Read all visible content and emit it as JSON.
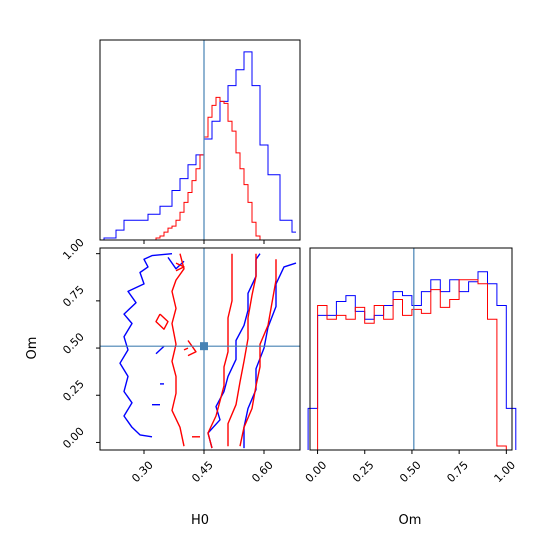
{
  "chart_data": [
    {
      "id": "h0-marginal",
      "type": "histogram",
      "title": "",
      "xlabel": "",
      "ylabel": "",
      "xlim": [
        0.19,
        0.69
      ],
      "x_ticks": [
        0.3,
        0.45,
        0.6
      ],
      "tick_labels_shown": false,
      "truth_line": 0.45,
      "series": [
        {
          "color": "#0000ff",
          "bin_edges": [
            0.2,
            0.21,
            0.22,
            0.23,
            0.24,
            0.25,
            0.26,
            0.27,
            0.28,
            0.29,
            0.3,
            0.31,
            0.32,
            0.33,
            0.34,
            0.35,
            0.36,
            0.37,
            0.38,
            0.39,
            0.4,
            0.41,
            0.42,
            0.43,
            0.44,
            0.45,
            0.46,
            0.47,
            0.48,
            0.49,
            0.5,
            0.51,
            0.52,
            0.53,
            0.54,
            0.55,
            0.56,
            0.57,
            0.58,
            0.59,
            0.6,
            0.61,
            0.62,
            0.63,
            0.64,
            0.65,
            0.66,
            0.67,
            0.68
          ],
          "counts": [
            0.01,
            0.01,
            0.01,
            0.05,
            0.05,
            0.1,
            0.1,
            0.1,
            0.1,
            0.1,
            0.1,
            0.13,
            0.13,
            0.13,
            0.17,
            0.17,
            0.17,
            0.25,
            0.25,
            0.31,
            0.31,
            0.38,
            0.38,
            0.43,
            0.43,
            0.51,
            0.51,
            0.6,
            0.6,
            0.7,
            0.7,
            0.78,
            0.78,
            0.86,
            0.86,
            0.95,
            0.95,
            0.78,
            0.78,
            0.48,
            0.48,
            0.33,
            0.33,
            0.33,
            0.1,
            0.1,
            0.1,
            0.04,
            0.04
          ]
        },
        {
          "color": "#ff0000",
          "bin_edges": [
            0.33,
            0.34,
            0.35,
            0.36,
            0.37,
            0.38,
            0.39,
            0.4,
            0.41,
            0.42,
            0.43,
            0.44,
            0.45,
            0.46,
            0.47,
            0.48,
            0.49,
            0.5,
            0.51,
            0.52,
            0.53,
            0.54,
            0.55,
            0.56,
            0.57,
            0.58,
            0.59,
            0.6
          ],
          "counts": [
            0.01,
            0.02,
            0.04,
            0.06,
            0.07,
            0.1,
            0.14,
            0.19,
            0.24,
            0.3,
            0.36,
            0.43,
            0.52,
            0.62,
            0.68,
            0.72,
            0.7,
            0.69,
            0.6,
            0.55,
            0.44,
            0.36,
            0.28,
            0.19,
            0.09,
            0.02,
            0.0,
            0.0
          ]
        }
      ]
    },
    {
      "id": "h0-om-contour",
      "type": "contour",
      "title": "",
      "xlabel": "H0",
      "ylabel": "Om",
      "xlim": [
        0.19,
        0.69
      ],
      "ylim": [
        -0.04,
        1.03
      ],
      "x_ticks": [
        "0.30",
        "0.45",
        "0.60"
      ],
      "y_ticks": [
        "0.00",
        "0.25",
        "0.50",
        "0.75",
        "1.00"
      ],
      "truth_point": [
        0.45,
        0.51
      ],
      "series": [
        {
          "color": "#0000ff",
          "contours": [
            [
              [
                0.37,
                1.0
              ],
              [
                0.32,
                0.99
              ],
              [
                0.3,
                0.97
              ],
              [
                0.31,
                0.93
              ],
              [
                0.29,
                0.9
              ],
              [
                0.3,
                0.84
              ],
              [
                0.26,
                0.8
              ],
              [
                0.28,
                0.74
              ],
              [
                0.25,
                0.68
              ],
              [
                0.27,
                0.63
              ],
              [
                0.25,
                0.56
              ],
              [
                0.26,
                0.49
              ],
              [
                0.24,
                0.42
              ],
              [
                0.26,
                0.35
              ],
              [
                0.25,
                0.27
              ],
              [
                0.27,
                0.21
              ],
              [
                0.25,
                0.14
              ],
              [
                0.27,
                0.08
              ],
              [
                0.29,
                0.04
              ],
              [
                0.32,
                0.03
              ]
            ],
            [
              [
                0.47,
                -0.03
              ],
              [
                0.46,
                0.05
              ],
              [
                0.49,
                0.12
              ],
              [
                0.48,
                0.19
              ],
              [
                0.5,
                0.27
              ],
              [
                0.51,
                0.35
              ],
              [
                0.53,
                0.44
              ],
              [
                0.53,
                0.54
              ],
              [
                0.55,
                0.62
              ],
              [
                0.56,
                0.7
              ],
              [
                0.56,
                0.79
              ],
              [
                0.58,
                0.88
              ],
              [
                0.58,
                0.97
              ],
              [
                0.59,
                1.0
              ]
            ],
            [
              [
                0.55,
                -0.03
              ],
              [
                0.55,
                0.08
              ],
              [
                0.56,
                0.18
              ],
              [
                0.58,
                0.28
              ],
              [
                0.58,
                0.39
              ],
              [
                0.6,
                0.5
              ],
              [
                0.61,
                0.61
              ],
              [
                0.63,
                0.72
              ],
              [
                0.63,
                0.84
              ],
              [
                0.65,
                0.93
              ],
              [
                0.68,
                0.95
              ]
            ],
            [
              [
                0.36,
                0.98
              ],
              [
                0.38,
                0.92
              ],
              [
                0.4,
                0.96
              ]
            ],
            [
              [
                0.33,
                0.47
              ],
              [
                0.35,
                0.51
              ]
            ],
            [
              [
                0.34,
                0.31
              ],
              [
                0.35,
                0.31
              ]
            ],
            [
              [
                0.32,
                0.2
              ],
              [
                0.34,
                0.2
              ]
            ]
          ]
        },
        {
          "color": "#ff0000",
          "contours": [
            [
              [
                0.39,
                1.0
              ],
              [
                0.4,
                0.92
              ],
              [
                0.38,
                0.86
              ],
              [
                0.37,
                0.8
              ],
              [
                0.38,
                0.71
              ],
              [
                0.37,
                0.63
              ],
              [
                0.38,
                0.52
              ],
              [
                0.37,
                0.43
              ],
              [
                0.38,
                0.35
              ],
              [
                0.38,
                0.26
              ],
              [
                0.37,
                0.17
              ],
              [
                0.39,
                0.08
              ],
              [
                0.4,
                -0.02
              ]
            ],
            [
              [
                0.47,
                -0.03
              ],
              [
                0.46,
                0.05
              ],
              [
                0.48,
                0.14
              ],
              [
                0.49,
                0.22
              ],
              [
                0.5,
                0.3
              ],
              [
                0.5,
                0.4
              ],
              [
                0.51,
                0.48
              ],
              [
                0.51,
                0.57
              ],
              [
                0.51,
                0.66
              ],
              [
                0.52,
                0.75
              ],
              [
                0.52,
                0.84
              ],
              [
                0.52,
                0.95
              ],
              [
                0.52,
                1.0
              ]
            ],
            [
              [
                0.51,
                -0.02
              ],
              [
                0.51,
                0.1
              ],
              [
                0.53,
                0.2
              ],
              [
                0.54,
                0.32
              ],
              [
                0.55,
                0.43
              ],
              [
                0.56,
                0.55
              ],
              [
                0.56,
                0.66
              ],
              [
                0.57,
                0.78
              ],
              [
                0.58,
                0.88
              ],
              [
                0.58,
                1.0
              ]
            ],
            [
              [
                0.54,
                -0.02
              ],
              [
                0.55,
                0.08
              ],
              [
                0.57,
                0.18
              ],
              [
                0.58,
                0.3
              ],
              [
                0.59,
                0.4
              ],
              [
                0.59,
                0.52
              ],
              [
                0.61,
                0.62
              ],
              [
                0.62,
                0.74
              ],
              [
                0.63,
                0.86
              ],
              [
                0.63,
                0.97
              ]
            ],
            [
              [
                0.42,
                0.03
              ],
              [
                0.44,
                0.03
              ]
            ],
            [
              [
                0.34,
                0.68
              ],
              [
                0.36,
                0.64
              ],
              [
                0.35,
                0.6
              ],
              [
                0.33,
                0.64
              ],
              [
                0.34,
                0.68
              ]
            ],
            [
              [
                0.41,
                0.54
              ],
              [
                0.43,
                0.48
              ],
              [
                0.41,
                0.46
              ]
            ],
            [
              [
                0.4,
                0.49
              ],
              [
                0.41,
                0.5
              ]
            ],
            [
              [
                0.38,
                0.95
              ],
              [
                0.4,
                0.93
              ],
              [
                0.38,
                0.91
              ]
            ]
          ]
        }
      ]
    },
    {
      "id": "om-marginal",
      "type": "histogram",
      "title": "",
      "xlabel": "Om",
      "ylabel": "",
      "xlim": [
        -0.04,
        1.03
      ],
      "x_ticks": [
        "0.00",
        "0.25",
        "0.50",
        "0.75",
        "1.00"
      ],
      "truth_line": 0.51,
      "series": [
        {
          "color": "#0000ff",
          "bin_edges": [
            -0.05,
            0.0,
            0.05,
            0.1,
            0.15,
            0.2,
            0.25,
            0.3,
            0.35,
            0.4,
            0.45,
            0.5,
            0.55,
            0.6,
            0.65,
            0.7,
            0.75,
            0.8,
            0.85,
            0.9,
            0.95,
            1.0,
            1.05
          ],
          "counts": [
            0.21,
            0.68,
            0.68,
            0.75,
            0.78,
            0.7,
            0.66,
            0.68,
            0.73,
            0.8,
            0.78,
            0.73,
            0.8,
            0.86,
            0.8,
            0.86,
            0.8,
            0.85,
            0.9,
            0.84,
            0.73,
            0.21
          ]
        },
        {
          "color": "#ff0000",
          "bin_edges": [
            0.0,
            0.05,
            0.1,
            0.15,
            0.2,
            0.25,
            0.3,
            0.35,
            0.4,
            0.45,
            0.5,
            0.55,
            0.6,
            0.65,
            0.7,
            0.75,
            0.8,
            0.85,
            0.9,
            0.95,
            1.0
          ],
          "counts": [
            0.73,
            0.66,
            0.68,
            0.66,
            0.72,
            0.64,
            0.73,
            0.66,
            0.76,
            0.68,
            0.71,
            0.69,
            0.81,
            0.72,
            0.76,
            0.86,
            0.86,
            0.84,
            0.66,
            0.02
          ]
        }
      ]
    }
  ]
}
